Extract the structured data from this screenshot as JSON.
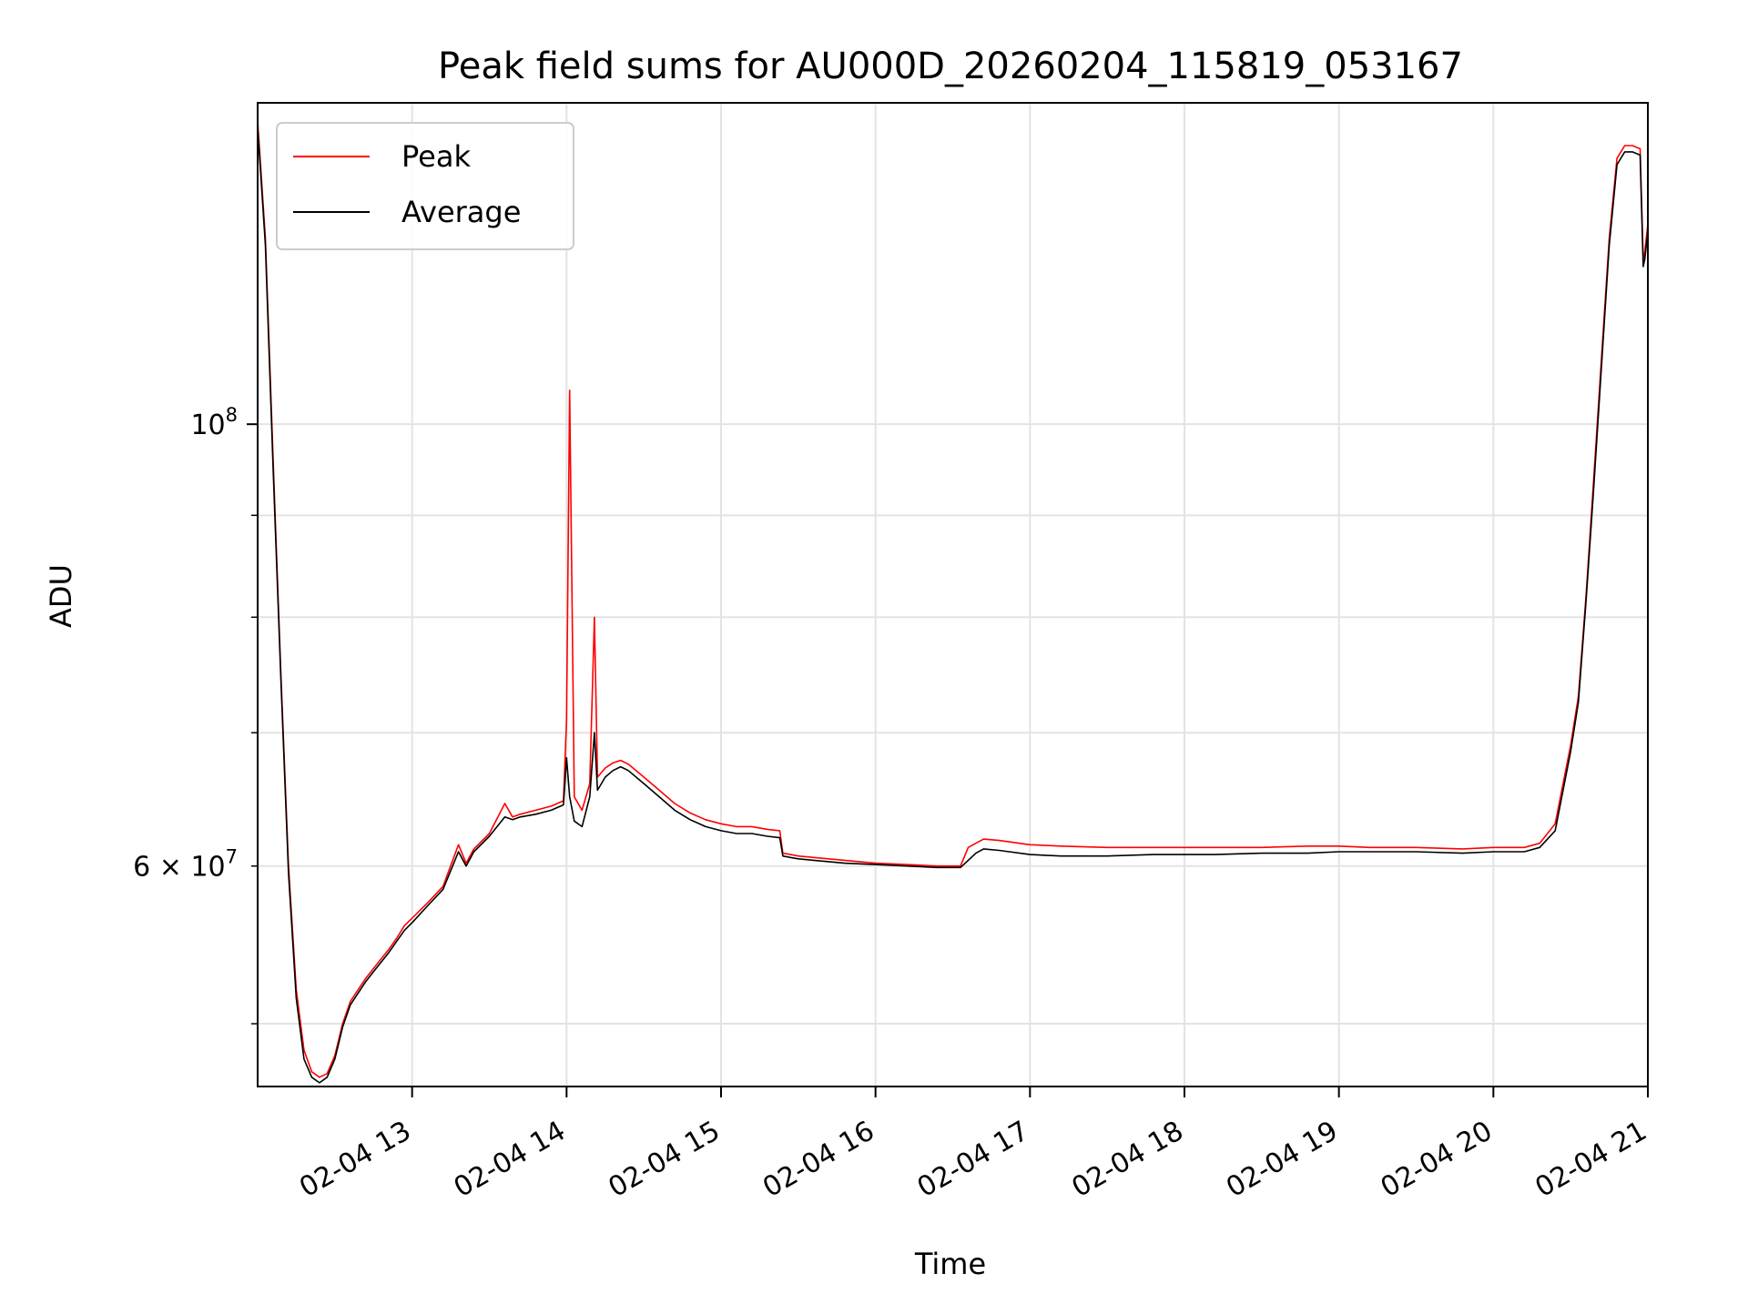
{
  "chart_data": {
    "type": "line",
    "title": "Peak field sums for AU000D_20260204_115819_053167",
    "xlabel": "Time",
    "ylabel": "ADU",
    "y_scale": "log",
    "xlim": [
      12.0,
      21.0
    ],
    "ylim": [
      46500000,
      145000000
    ],
    "grid": true,
    "legend_position": "top-left",
    "x_ticks": [
      {
        "value": 13,
        "label": "02-04 13"
      },
      {
        "value": 14,
        "label": "02-04 14"
      },
      {
        "value": 15,
        "label": "02-04 15"
      },
      {
        "value": 16,
        "label": "02-04 16"
      },
      {
        "value": 17,
        "label": "02-04 17"
      },
      {
        "value": 18,
        "label": "02-04 18"
      },
      {
        "value": 19,
        "label": "02-04 19"
      },
      {
        "value": 20,
        "label": "02-04 20"
      },
      {
        "value": 21,
        "label": "02-04 21"
      }
    ],
    "y_major_ticks": [
      {
        "value": 100000000,
        "base": "10",
        "exp": "8"
      }
    ],
    "y_minor_ticks": [
      {
        "value": 60000000,
        "coef": "6",
        "base": "10",
        "exp": "7"
      },
      {
        "value": 50000000
      },
      {
        "value": 70000000
      },
      {
        "value": 80000000
      },
      {
        "value": 90000000
      }
    ],
    "series": [
      {
        "name": "Peak",
        "color": "#ff0000",
        "x": [
          12.0,
          12.05,
          12.1,
          12.15,
          12.2,
          12.25,
          12.3,
          12.35,
          12.4,
          12.45,
          12.5,
          12.55,
          12.6,
          12.65,
          12.7,
          12.75,
          12.8,
          12.85,
          12.9,
          12.95,
          13.0,
          13.1,
          13.2,
          13.3,
          13.35,
          13.4,
          13.5,
          13.6,
          13.65,
          13.7,
          13.8,
          13.9,
          13.98,
          14.0,
          14.02,
          14.05,
          14.1,
          14.15,
          14.18,
          14.2,
          14.25,
          14.3,
          14.35,
          14.4,
          14.5,
          14.6,
          14.7,
          14.8,
          14.9,
          15.0,
          15.1,
          15.2,
          15.3,
          15.38,
          15.4,
          15.45,
          15.5,
          15.6,
          15.8,
          16.0,
          16.2,
          16.4,
          16.55,
          16.6,
          16.65,
          16.7,
          16.8,
          17.0,
          17.2,
          17.5,
          17.8,
          18.0,
          18.2,
          18.5,
          18.8,
          19.0,
          19.2,
          19.5,
          19.8,
          20.0,
          20.1,
          20.2,
          20.3,
          20.4,
          20.5,
          20.55,
          20.6,
          20.65,
          20.7,
          20.75,
          20.8,
          20.85,
          20.9,
          20.95,
          20.97,
          20.98,
          21.0
        ],
        "values": [
          142000000,
          124000000,
          96000000,
          75000000,
          60000000,
          52000000,
          48500000,
          47300000,
          47000000,
          47200000,
          48200000,
          50000000,
          51300000,
          52000000,
          52700000,
          53300000,
          53900000,
          54500000,
          55200000,
          56000000,
          56500000,
          57500000,
          58600000,
          61500000,
          60200000,
          61200000,
          62300000,
          64500000,
          63500000,
          63700000,
          64000000,
          64300000,
          64700000,
          71000000,
          104000000,
          65000000,
          64000000,
          66000000,
          80000000,
          66500000,
          67200000,
          67600000,
          67800000,
          67500000,
          66500000,
          65500000,
          64500000,
          63800000,
          63300000,
          63000000,
          62800000,
          62800000,
          62600000,
          62500000,
          60900000,
          60800000,
          60700000,
          60600000,
          60400000,
          60200000,
          60100000,
          60000000,
          60000000,
          61300000,
          61600000,
          61900000,
          61800000,
          61500000,
          61400000,
          61300000,
          61300000,
          61300000,
          61300000,
          61300000,
          61400000,
          61400000,
          61300000,
          61300000,
          61200000,
          61300000,
          61300000,
          61300000,
          61600000,
          63000000,
          69000000,
          73000000,
          82000000,
          94000000,
          108000000,
          124000000,
          136000000,
          138000000,
          138000000,
          137500000,
          121000000,
          122000000,
          126000000
        ]
      },
      {
        "name": "Average",
        "color": "#000000",
        "x": [
          12.0,
          12.05,
          12.1,
          12.15,
          12.2,
          12.25,
          12.3,
          12.35,
          12.4,
          12.45,
          12.5,
          12.55,
          12.6,
          12.65,
          12.7,
          12.75,
          12.8,
          12.85,
          12.9,
          12.95,
          13.0,
          13.1,
          13.2,
          13.3,
          13.35,
          13.4,
          13.5,
          13.6,
          13.65,
          13.7,
          13.8,
          13.9,
          13.98,
          14.0,
          14.02,
          14.05,
          14.1,
          14.15,
          14.18,
          14.2,
          14.25,
          14.3,
          14.35,
          14.4,
          14.5,
          14.6,
          14.7,
          14.8,
          14.9,
          15.0,
          15.1,
          15.2,
          15.3,
          15.38,
          15.4,
          15.45,
          15.5,
          15.6,
          15.8,
          16.0,
          16.2,
          16.4,
          16.55,
          16.6,
          16.65,
          16.7,
          16.8,
          17.0,
          17.2,
          17.5,
          17.8,
          18.0,
          18.2,
          18.5,
          18.8,
          19.0,
          19.2,
          19.5,
          19.8,
          20.0,
          20.1,
          20.2,
          20.3,
          20.4,
          20.5,
          20.55,
          20.6,
          20.65,
          20.7,
          20.75,
          20.8,
          20.85,
          20.9,
          20.95,
          20.97,
          20.98,
          21.0
        ],
        "values": [
          141000000,
          123000000,
          95000000,
          74500000,
          59500000,
          51500000,
          48000000,
          47000000,
          46700000,
          47000000,
          48000000,
          49800000,
          51100000,
          51800000,
          52500000,
          53100000,
          53700000,
          54300000,
          55000000,
          55700000,
          56200000,
          57300000,
          58400000,
          61000000,
          60000000,
          61000000,
          62100000,
          63500000,
          63300000,
          63500000,
          63700000,
          64000000,
          64400000,
          68000000,
          65000000,
          63200000,
          62800000,
          65000000,
          70000000,
          65500000,
          66500000,
          67000000,
          67300000,
          67000000,
          66000000,
          65000000,
          64000000,
          63300000,
          62800000,
          62500000,
          62300000,
          62300000,
          62100000,
          62000000,
          60700000,
          60600000,
          60500000,
          60400000,
          60200000,
          60100000,
          60000000,
          59900000,
          59900000,
          60400000,
          60900000,
          61200000,
          61100000,
          60800000,
          60700000,
          60700000,
          60800000,
          60800000,
          60800000,
          60900000,
          60900000,
          61000000,
          61000000,
          61000000,
          60900000,
          61000000,
          61000000,
          61000000,
          61300000,
          62500000,
          68500000,
          72500000,
          81500000,
          93000000,
          107000000,
          123000000,
          135000000,
          137000000,
          137000000,
          136500000,
          120000000,
          121000000,
          125000000
        ]
      }
    ]
  }
}
